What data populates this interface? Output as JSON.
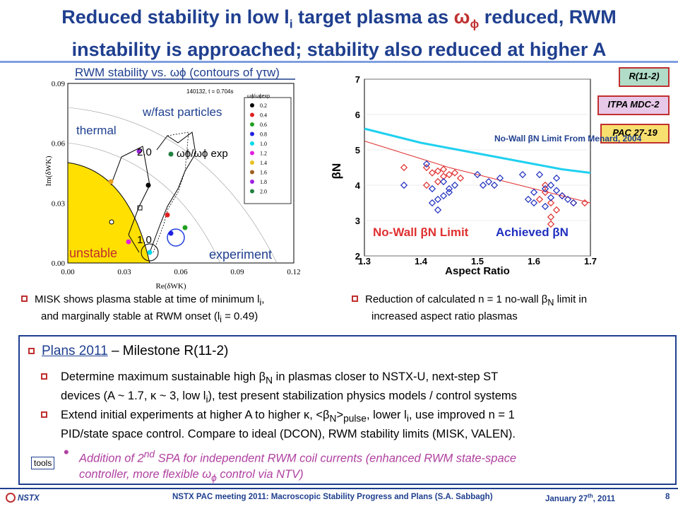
{
  "title": {
    "line1_a": "Reduced stability in low l",
    "line1_sub": "i",
    "line1_b": " target plasma as ",
    "line1_omega": "ω",
    "line1_phi": "ϕ",
    "line1_c": " reduced, RWM",
    "line2": "instability is approached; stability also reduced at higher A"
  },
  "tags": [
    "R(11-2)",
    "ITPA MDC-2",
    "PAC 27-19"
  ],
  "left_chart": {
    "title": "RWM stability vs. ωϕ (contours of γτw)",
    "shot_label": "140132, t = 0.704s",
    "legend_header": "ωϕ/ωϕexp",
    "legend_values": [
      "0.2",
      "0.4",
      "0.6",
      "0.8",
      "1.0",
      "1.2",
      "1.4",
      "1.6",
      "1.8",
      "2.0"
    ],
    "legend_colors": [
      "#000000",
      "#e02020",
      "#20a020",
      "#2020e0",
      "#00d8e8",
      "#e020e0",
      "#e8c020",
      "#a06020",
      "#a020e0",
      "#208040"
    ],
    "label_thermal": "thermal",
    "label_fast": "w/fast particles",
    "label_ratio": "ωϕ/ωϕ exp",
    "label_unstable": "unstable",
    "label_experiment": "experiment",
    "label_1_0": "1.0",
    "label_2_0": "2.0",
    "xlabel": "Re(δWK)",
    "ylabel": "Im(δWK)",
    "xticks": [
      "0.00",
      "0.03",
      "0.06",
      "0.09",
      "0.12"
    ],
    "yticks": [
      "0.00",
      "0.03",
      "0.06",
      "0.09"
    ]
  },
  "chart_data": {
    "type": "scatter",
    "xlabel": "Aspect Ratio",
    "ylabel": "βN",
    "xlim": [
      1.3,
      1.7
    ],
    "ylim": [
      2,
      7
    ],
    "xticks": [
      "1.3",
      "1.4",
      "1.5",
      "1.6",
      "1.7"
    ],
    "yticks": [
      "2",
      "3",
      "4",
      "5",
      "6",
      "7"
    ],
    "annotation": "No-Wall βN Limit From Menard, 2004",
    "legend": [
      "No-Wall βN Limit",
      "Achieved βN"
    ],
    "series": [
      {
        "name": "No-Wall βN Limit",
        "color": "#e03030",
        "x": [
          1.3,
          1.35,
          1.4,
          1.45,
          1.5,
          1.55,
          1.6,
          1.65,
          1.7
        ],
        "y": [
          5.25,
          5.0,
          4.75,
          4.5,
          4.3,
          4.1,
          3.9,
          3.7,
          3.5
        ]
      },
      {
        "name": "No-Wall βN Limit From Menard, 2004",
        "color": "#20d0f0",
        "x": [
          1.3,
          1.35,
          1.4,
          1.45,
          1.5,
          1.55,
          1.6,
          1.65,
          1.7
        ],
        "y": [
          5.6,
          5.4,
          5.2,
          5.05,
          4.9,
          4.75,
          4.6,
          4.45,
          4.35
        ]
      },
      {
        "name": "No-Wall βN Limit",
        "color": "#e03030",
        "points": [
          [
            1.37,
            4.5
          ],
          [
            1.41,
            4.5
          ],
          [
            1.42,
            4.35
          ],
          [
            1.43,
            4.4
          ],
          [
            1.44,
            4.25
          ],
          [
            1.45,
            4.3
          ],
          [
            1.43,
            4.1
          ],
          [
            1.46,
            4.35
          ],
          [
            1.47,
            4.2
          ],
          [
            1.41,
            4.0
          ],
          [
            1.44,
            4.45
          ],
          [
            1.62,
            3.8
          ],
          [
            1.63,
            3.5
          ],
          [
            1.64,
            3.3
          ],
          [
            1.61,
            3.6
          ],
          [
            1.63,
            3.1
          ],
          [
            1.67,
            3.5
          ],
          [
            1.69,
            3.5
          ],
          [
            1.65,
            3.7
          ],
          [
            1.62,
            4.0
          ],
          [
            1.63,
            2.9
          ]
        ]
      },
      {
        "name": "Achieved βN",
        "color": "#2030c0",
        "points": [
          [
            1.37,
            4.0
          ],
          [
            1.41,
            4.6
          ],
          [
            1.42,
            3.9
          ],
          [
            1.43,
            3.6
          ],
          [
            1.44,
            3.7
          ],
          [
            1.42,
            3.5
          ],
          [
            1.45,
            3.8
          ],
          [
            1.43,
            3.3
          ],
          [
            1.44,
            4.1
          ],
          [
            1.45,
            3.9
          ],
          [
            1.46,
            4.0
          ],
          [
            1.5,
            4.3
          ],
          [
            1.51,
            4.0
          ],
          [
            1.52,
            4.1
          ],
          [
            1.53,
            4.0
          ],
          [
            1.54,
            4.2
          ],
          [
            1.58,
            4.3
          ],
          [
            1.59,
            3.6
          ],
          [
            1.6,
            3.8
          ],
          [
            1.61,
            4.3
          ],
          [
            1.62,
            3.9
          ],
          [
            1.63,
            4.0
          ],
          [
            1.64,
            4.2
          ],
          [
            1.65,
            3.7
          ],
          [
            1.66,
            3.6
          ],
          [
            1.62,
            3.4
          ],
          [
            1.6,
            3.5
          ],
          [
            1.63,
            3.65
          ],
          [
            1.67,
            3.5
          ],
          [
            1.64,
            3.85
          ]
        ]
      }
    ]
  },
  "left_bullet": {
    "text_a": "MISK shows plasma stable at time of minimum l",
    "sub1": "i",
    "text_b": ",",
    "line2_a": "and marginally stable at RWM onset (l",
    "sub2": "i",
    "line2_b": " = 0.49)"
  },
  "right_bullet": {
    "text_a": "Reduction of calculated n = 1 no-wall β",
    "sub1": "N",
    "text_b": " limit in",
    "line2": "increased aspect ratio plasmas"
  },
  "plans": {
    "heading": "Plans 2011",
    "milestone": " – Milestone R(11-2)",
    "b1_l1_a": "Determine maximum sustainable high β",
    "b1_l1_sub": "N",
    "b1_l1_b": " in plasmas closer to NSTX-U, next-step ST",
    "b1_l2_a": "devices (A ~ 1.7, κ ~ 3, low l",
    "b1_l2_sub": "i",
    "b1_l2_b": "), test present stabilization physics models / control systems",
    "b2_l1_a": "Extend initial experiments at higher A to higher κ, <β",
    "b2_l1_sub1": "N",
    "b2_l1_b": ">",
    "b2_l1_sub2": "pulse",
    "b2_l1_c": ", lower l",
    "b2_l1_sub3": "i",
    "b2_l1_d": ", use improved n = 1",
    "b2_l2": "PID/state space control. Compare to ideal (DCON), RWM stability limits (MISK, VALEN).",
    "b3_l1_a": "Addition of 2",
    "b3_l1_sup": "nd",
    "b3_l1_b": " SPA for independent RWM coil currents (enhanced RWM state-space",
    "b3_l2_a": "controller, more flexible ω",
    "b3_l2_sub": "ϕ",
    "b3_l2_b": " control via NTV)"
  },
  "tools_button": "tools",
  "footer": {
    "logo": "NSTX",
    "center": "NSTX PAC meeting 2011: Macroscopic Stability Progress and Plans (S.A. Sabbagh)",
    "date_a": "January 27",
    "date_sup": "th",
    "date_b": ", 2011",
    "page": "8"
  }
}
